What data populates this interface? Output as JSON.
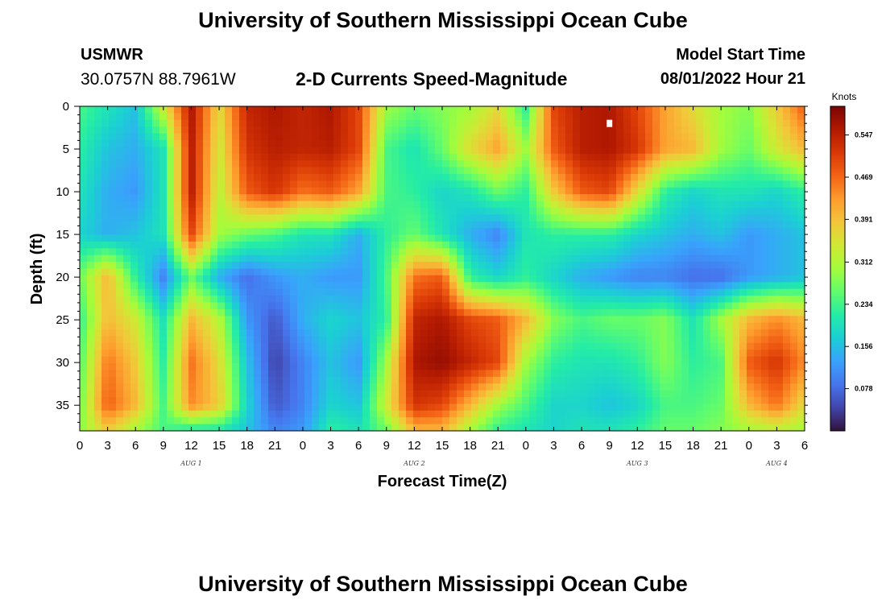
{
  "title": "University of Southern Mississippi Ocean Cube",
  "footer_title": "University of Southern Mississippi Ocean Cube",
  "station": {
    "name": "USMWR",
    "coords": "30.0757N  88.7961W"
  },
  "plot_title": "2-D Currents Speed-Magnitude",
  "model": {
    "label": "Model Start Time",
    "value": "08/01/2022 Hour 21"
  },
  "chart_data": {
    "type": "heatmap",
    "xlabel": "Forecast Time(Z)",
    "ylabel": "Depth (ft)",
    "x_tick_labels": [
      "0",
      "3",
      "6",
      "9",
      "12",
      "15",
      "18",
      "21",
      "0",
      "3",
      "6",
      "9",
      "12",
      "15",
      "18",
      "21",
      "0",
      "3",
      "6",
      "9",
      "12",
      "15",
      "18",
      "21",
      "0",
      "3",
      "6"
    ],
    "date_labels": [
      {
        "text": "AUG 1",
        "hours": 12
      },
      {
        "text": "AUG 2",
        "hours": 36
      },
      {
        "text": "AUG 3",
        "hours": 60
      },
      {
        "text": "AUG 4",
        "hours": 75
      }
    ],
    "xlim": [
      0,
      78
    ],
    "ylim": [
      38,
      0
    ],
    "y_ticks": [
      0,
      5,
      10,
      15,
      20,
      25,
      30,
      35
    ],
    "marker": {
      "hours": 57,
      "depth": 2
    },
    "colorbar": {
      "unit": "Knots",
      "range": [
        0,
        0.6
      ],
      "labels": [
        "0.547",
        "0.469",
        "0.391",
        "0.312",
        "0.234",
        "0.156",
        "0.078"
      ],
      "colors": [
        "#30123b",
        "#4145ab",
        "#4675ed",
        "#39a2fc",
        "#1bcfd4",
        "#24eca6",
        "#61fc6c",
        "#a4fc3b",
        "#d1e834",
        "#f3c63a",
        "#fe9b2d",
        "#f36315",
        "#d93806",
        "#b11901",
        "#7a0403"
      ]
    },
    "grid": false,
    "colorscale": "turbo",
    "hours": [
      0,
      3,
      6,
      9,
      12,
      15,
      18,
      21,
      24,
      27,
      30,
      33,
      36,
      39,
      42,
      45,
      48,
      51,
      54,
      57,
      60,
      63,
      66,
      69,
      72,
      75,
      78
    ],
    "depths": [
      0,
      5,
      10,
      15,
      20,
      25,
      30,
      35,
      38
    ],
    "speed": [
      [
        0.24,
        0.2,
        0.16,
        0.34,
        0.56,
        0.36,
        0.54,
        0.56,
        0.54,
        0.56,
        0.5,
        0.3,
        0.26,
        0.28,
        0.3,
        0.36,
        0.22,
        0.5,
        0.55,
        0.56,
        0.5,
        0.42,
        0.36,
        0.3,
        0.28,
        0.38,
        0.48
      ],
      [
        0.22,
        0.16,
        0.14,
        0.2,
        0.55,
        0.34,
        0.52,
        0.55,
        0.54,
        0.55,
        0.5,
        0.24,
        0.2,
        0.26,
        0.36,
        0.42,
        0.3,
        0.48,
        0.55,
        0.56,
        0.52,
        0.42,
        0.4,
        0.3,
        0.26,
        0.34,
        0.4
      ],
      [
        0.2,
        0.14,
        0.12,
        0.2,
        0.55,
        0.32,
        0.48,
        0.52,
        0.46,
        0.48,
        0.42,
        0.24,
        0.22,
        0.18,
        0.2,
        0.26,
        0.22,
        0.38,
        0.48,
        0.5,
        0.36,
        0.22,
        0.18,
        0.2,
        0.2,
        0.18,
        0.22
      ],
      [
        0.18,
        0.14,
        0.16,
        0.2,
        0.5,
        0.3,
        0.26,
        0.24,
        0.2,
        0.2,
        0.14,
        0.22,
        0.26,
        0.2,
        0.14,
        0.1,
        0.2,
        0.22,
        0.22,
        0.22,
        0.18,
        0.16,
        0.14,
        0.16,
        0.12,
        0.14,
        0.16
      ],
      [
        0.26,
        0.4,
        0.22,
        0.1,
        0.26,
        0.14,
        0.08,
        0.12,
        0.14,
        0.12,
        0.12,
        0.24,
        0.46,
        0.48,
        0.22,
        0.18,
        0.22,
        0.18,
        0.14,
        0.12,
        0.1,
        0.1,
        0.08,
        0.08,
        0.12,
        0.14,
        0.16
      ],
      [
        0.22,
        0.4,
        0.34,
        0.2,
        0.4,
        0.32,
        0.12,
        0.06,
        0.14,
        0.18,
        0.16,
        0.22,
        0.54,
        0.56,
        0.5,
        0.48,
        0.4,
        0.28,
        0.24,
        0.26,
        0.26,
        0.28,
        0.2,
        0.3,
        0.4,
        0.44,
        0.4
      ],
      [
        0.24,
        0.46,
        0.38,
        0.22,
        0.46,
        0.36,
        0.16,
        0.04,
        0.1,
        0.16,
        0.12,
        0.3,
        0.56,
        0.58,
        0.54,
        0.5,
        0.3,
        0.22,
        0.2,
        0.2,
        0.22,
        0.28,
        0.22,
        0.24,
        0.48,
        0.52,
        0.44
      ],
      [
        0.26,
        0.48,
        0.4,
        0.24,
        0.44,
        0.38,
        0.18,
        0.06,
        0.1,
        0.18,
        0.16,
        0.34,
        0.52,
        0.5,
        0.4,
        0.3,
        0.24,
        0.18,
        0.18,
        0.16,
        0.18,
        0.24,
        0.24,
        0.26,
        0.4,
        0.46,
        0.36
      ],
      [
        0.28,
        0.38,
        0.3,
        0.24,
        0.2,
        0.2,
        0.16,
        0.1,
        0.12,
        0.22,
        0.2,
        0.26,
        0.4,
        0.4,
        0.3,
        0.22,
        0.2,
        0.18,
        0.2,
        0.2,
        0.22,
        0.26,
        0.26,
        0.28,
        0.3,
        0.32,
        0.3
      ]
    ]
  }
}
